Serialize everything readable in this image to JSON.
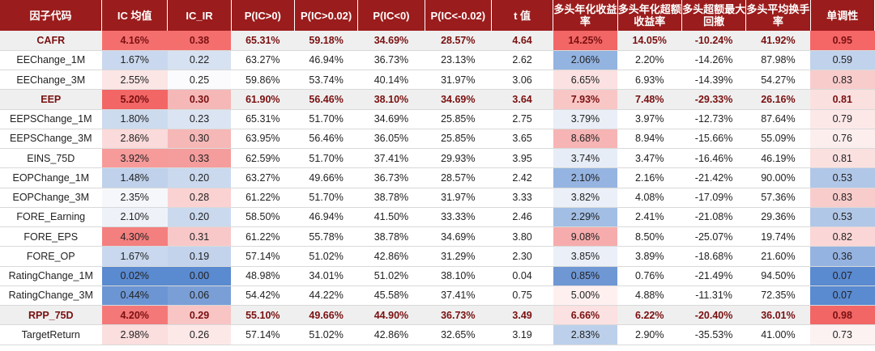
{
  "headers": [
    "因子代码",
    "IC 均值",
    "IC_IR",
    "P(IC>0)",
    "P(IC>0.02)",
    "P(IC<0)",
    "P(IC<-0.02)",
    "t 值",
    "多头年化收益率",
    "多头年化超额收益率",
    "多头超额最大回撤",
    "多头平均换手率",
    "单调性"
  ],
  "rows": [
    {
      "name": "CAFR",
      "bold": true,
      "cells": [
        "4.16%",
        "0.38",
        "65.31%",
        "59.18%",
        "34.69%",
        "28.57%",
        "4.64",
        "14.25%",
        "14.05%",
        "-10.24%",
        "41.92%",
        "0.95"
      ]
    },
    {
      "name": "EEChange_1M",
      "bold": false,
      "cells": [
        "1.67%",
        "0.22",
        "63.27%",
        "46.94%",
        "36.73%",
        "23.13%",
        "2.62",
        "2.06%",
        "2.20%",
        "-14.26%",
        "87.98%",
        "0.59"
      ]
    },
    {
      "name": "EEChange_3M",
      "bold": false,
      "cells": [
        "2.55%",
        "0.25",
        "59.86%",
        "53.74%",
        "40.14%",
        "31.97%",
        "3.06",
        "6.65%",
        "6.93%",
        "-14.39%",
        "54.27%",
        "0.83"
      ]
    },
    {
      "name": "EEP",
      "bold": true,
      "cells": [
        "5.20%",
        "0.30",
        "61.90%",
        "56.46%",
        "38.10%",
        "34.69%",
        "3.64",
        "7.93%",
        "7.48%",
        "-29.33%",
        "26.16%",
        "0.81"
      ]
    },
    {
      "name": "EEPSChange_1M",
      "bold": false,
      "cells": [
        "1.80%",
        "0.23",
        "65.31%",
        "51.70%",
        "34.69%",
        "25.85%",
        "2.75",
        "3.79%",
        "3.97%",
        "-12.73%",
        "87.64%",
        "0.79"
      ]
    },
    {
      "name": "EEPSChange_3M",
      "bold": false,
      "cells": [
        "2.86%",
        "0.30",
        "63.95%",
        "56.46%",
        "36.05%",
        "25.85%",
        "3.65",
        "8.68%",
        "8.94%",
        "-15.66%",
        "55.09%",
        "0.76"
      ]
    },
    {
      "name": "EINS_75D",
      "bold": false,
      "cells": [
        "3.92%",
        "0.33",
        "62.59%",
        "51.70%",
        "37.41%",
        "29.93%",
        "3.95",
        "3.74%",
        "3.47%",
        "-16.46%",
        "46.19%",
        "0.81"
      ]
    },
    {
      "name": "EOPChange_1M",
      "bold": false,
      "cells": [
        "1.48%",
        "0.20",
        "63.27%",
        "49.66%",
        "36.73%",
        "28.57%",
        "2.42",
        "2.10%",
        "2.16%",
        "-21.42%",
        "90.00%",
        "0.53"
      ]
    },
    {
      "name": "EOPChange_3M",
      "bold": false,
      "cells": [
        "2.35%",
        "0.28",
        "61.22%",
        "51.70%",
        "38.78%",
        "31.97%",
        "3.33",
        "3.82%",
        "4.08%",
        "-17.09%",
        "57.36%",
        "0.83"
      ]
    },
    {
      "name": "FORE_Earning",
      "bold": false,
      "cells": [
        "2.10%",
        "0.20",
        "58.50%",
        "46.94%",
        "41.50%",
        "33.33%",
        "2.46",
        "2.29%",
        "2.41%",
        "-21.08%",
        "29.36%",
        "0.53"
      ]
    },
    {
      "name": "FORE_EPS",
      "bold": false,
      "cells": [
        "4.30%",
        "0.31",
        "61.22%",
        "55.78%",
        "38.78%",
        "34.69%",
        "3.80",
        "9.08%",
        "8.50%",
        "-25.07%",
        "19.74%",
        "0.82"
      ]
    },
    {
      "name": "FORE_OP",
      "bold": false,
      "cells": [
        "1.67%",
        "0.19",
        "57.14%",
        "51.02%",
        "42.86%",
        "31.29%",
        "2.30",
        "3.85%",
        "3.89%",
        "-18.68%",
        "21.60%",
        "0.36"
      ]
    },
    {
      "name": "RatingChange_1M",
      "bold": false,
      "cells": [
        "0.02%",
        "0.00",
        "48.98%",
        "34.01%",
        "51.02%",
        "38.10%",
        "0.04",
        "0.85%",
        "0.76%",
        "-21.49%",
        "94.50%",
        "0.07"
      ]
    },
    {
      "name": "RatingChange_3M",
      "bold": false,
      "cells": [
        "0.44%",
        "0.06",
        "54.42%",
        "44.22%",
        "45.58%",
        "37.41%",
        "0.75",
        "5.00%",
        "4.88%",
        "-11.31%",
        "72.35%",
        "0.07"
      ]
    },
    {
      "name": "RPP_75D",
      "bold": true,
      "cells": [
        "4.20%",
        "0.29",
        "55.10%",
        "49.66%",
        "44.90%",
        "36.73%",
        "3.49",
        "6.66%",
        "6.22%",
        "-20.40%",
        "36.01%",
        "0.98"
      ]
    },
    {
      "name": "TargetReturn",
      "bold": false,
      "cells": [
        "2.98%",
        "0.26",
        "57.14%",
        "51.02%",
        "42.86%",
        "32.65%",
        "3.19",
        "2.83%",
        "2.90%",
        "-35.53%",
        "41.00%",
        "0.73"
      ]
    }
  ],
  "cell_colors": {
    "row_bg_bold": "#efefef",
    "ic_mean": [
      "#f56e6e",
      "#c9d8ee",
      "#fbe5e5",
      "#f26666",
      "#cddbef",
      "#fadada",
      "#f79a9a",
      "#bfd1eb",
      "#f5f7fb",
      "#eef2f8",
      "#f47f7f",
      "#c9d8ee",
      "#5a8ad0",
      "#6c95d3",
      "#f47878",
      "#fbdede"
    ],
    "ic_ir": [
      "#f56e6e",
      "#d6e1f1",
      "#fbfbfd",
      "#f6b7b7",
      "#dbe4f2",
      "#f6b7b7",
      "#f59c9c",
      "#cad9ee",
      "#fad2d2",
      "#cad9ee",
      "#f8c8c8",
      "#c3d3ec",
      "#5a8ad0",
      "#7a9fd7",
      "#f8c4c4",
      "#fde8e8"
    ],
    "annual_return": [
      "#f26666",
      "#93b3e0",
      "#fbe1e1",
      "#f9c6c6",
      "#e9eef7",
      "#f7b4b4",
      "#e6edf7",
      "#95b4e1",
      "#eaeff8",
      "#a2bee4",
      "#f6acac",
      "#eaeff8",
      "#6f97d4",
      "#fff0f0",
      "#fbe1e1",
      "#bdd0eb"
    ],
    "monotonicity": [
      "#f56666",
      "#c0d2ec",
      "#f9cccc",
      "#fbe0e0",
      "#fde8e8",
      "#fdeeee",
      "#fbe0e0",
      "#b1c7e8",
      "#f9cccc",
      "#b1c7e8",
      "#fbd6d6",
      "#95b3e1",
      "#5a8ad0",
      "#5a8ad0",
      "#f26666",
      "#fdf2f2"
    ]
  }
}
